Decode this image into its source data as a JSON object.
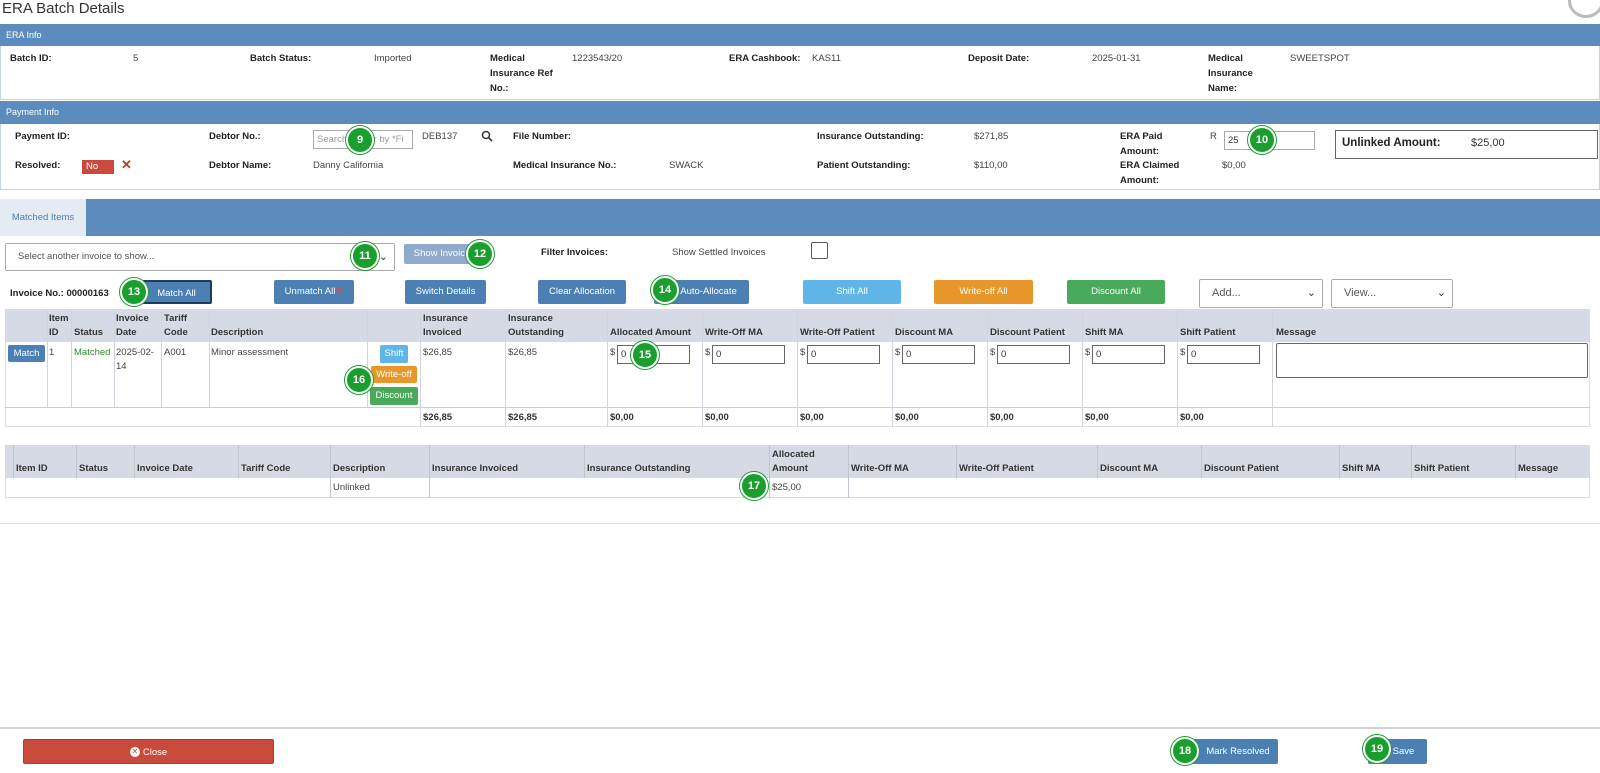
{
  "page": {
    "title": "ERA Batch Details"
  },
  "era_info": {
    "header": "ERA Info",
    "fields": [
      {
        "label": "Batch ID:",
        "value": "5"
      },
      {
        "label": "Batch Status:",
        "value": "Imported"
      },
      {
        "label": "Medical Insurance Ref No.:",
        "value": "1223543/20"
      },
      {
        "label": "ERA Cashbook:",
        "value": "KAS11"
      },
      {
        "label": "Deposit Date:",
        "value": "2025-01-31"
      },
      {
        "label": "Medical Insurance Name:",
        "value": "SWEETSPOT"
      }
    ]
  },
  "payment_info": {
    "header": "Payment Info",
    "payment_id_label": "Payment ID:",
    "debtor_no_label": "Debtor No.:",
    "debtor_search_placeholder": "Search debtor by *Fi",
    "debtor_no_value": "DEB137",
    "file_number_label": "File Number:",
    "ins_outstanding_label": "Insurance Outstanding:",
    "ins_outstanding_value": "$271,85",
    "era_paid_label": "ERA Paid Amount:",
    "era_paid_currency": "R",
    "era_paid_value": "25",
    "unlinked_label": "Unlinked Amount:",
    "unlinked_value": "$25,00",
    "resolved_label": "Resolved:",
    "resolved_value": "No",
    "debtor_name_label": "Debtor Name:",
    "debtor_name_value": "Danny California",
    "med_ins_no_label": "Medical Insurance No.:",
    "med_ins_no_value": "SWACK",
    "patient_outstanding_label": "Patient Outstanding:",
    "patient_outstanding_value": "$110,00",
    "era_claimed_label": "ERA Claimed Amount:",
    "era_claimed_value": "$0,00"
  },
  "tabs": {
    "matched_items": "Matched Items"
  },
  "invoice_controls": {
    "select_placeholder": "Select another invoice to show...",
    "show_invoice": "Show Invoice",
    "filter_label": "Filter Invoices:",
    "show_settled_label": "Show Settled Invoices"
  },
  "toolbar": {
    "invoice_no": "Invoice No.: 00000163",
    "match_all": "Match All",
    "unmatch_all": "Unmatch All",
    "switch_details": "Switch Details",
    "clear_allocation": "Clear Allocation",
    "auto_allocate": "Auto-Allocate",
    "shift_all": "Shift All",
    "write_off_all": "Write-off All",
    "discount_all": "Discount All",
    "add_select": "Add...",
    "view_select": "View..."
  },
  "invoice_table": {
    "headers": [
      "Item ID",
      "Status",
      "Invoice Date",
      "Tariff Code",
      "Description",
      "Insurance Invoiced",
      "Insurance Outstanding",
      "Allocated Amount",
      "Write-Off MA",
      "Write-Off Patient",
      "Discount MA",
      "Discount Patient",
      "Shift MA",
      "Shift Patient",
      "Message"
    ],
    "row": {
      "match_button": "Match",
      "item_id": "1",
      "status": "Matched",
      "invoice_date": "2025-02-14",
      "tariff_code": "A001",
      "description": "Minor assessment",
      "shift_button": "Shift",
      "writeoff_button": "Write-off",
      "discount_button": "Discount",
      "ins_invoiced": "$26,85",
      "ins_outstanding": "$26,85",
      "currency": "$",
      "allocated": "0",
      "write_off_ma": "0",
      "write_off_patient": "0",
      "discount_ma": "0",
      "discount_patient": "0",
      "shift_ma": "0",
      "shift_patient": "0"
    },
    "totals": [
      "$26,85",
      "$26,85",
      "$0,00",
      "$0,00",
      "$0,00",
      "$0,00",
      "$0,00",
      "$0,00",
      "$0,00"
    ]
  },
  "unlinked_table": {
    "headers": [
      "Item ID",
      "Status",
      "Invoice Date",
      "Tariff Code",
      "Description",
      "Insurance Invoiced",
      "Insurance Outstanding",
      "Allocated Amount",
      "Write-Off MA",
      "Write-Off Patient",
      "Discount MA",
      "Discount Patient",
      "Shift MA",
      "Shift Patient",
      "Message"
    ],
    "row": {
      "description": "Unlinked",
      "allocated": "$25,00"
    }
  },
  "footer": {
    "close": "Close",
    "mark_resolved": "Mark Resolved",
    "save": "Save"
  },
  "markers": [
    "9",
    "10",
    "11",
    "12",
    "13",
    "14",
    "15",
    "16",
    "17",
    "18",
    "19"
  ],
  "colors": {
    "header_bar": "#5b8cbd",
    "primary_button": "#4c7fb4",
    "danger": "#c94a3d",
    "warning": "#e8972a",
    "success": "#4aaa5c",
    "info": "#5fb5e8",
    "marker": "#1a9e2e"
  }
}
